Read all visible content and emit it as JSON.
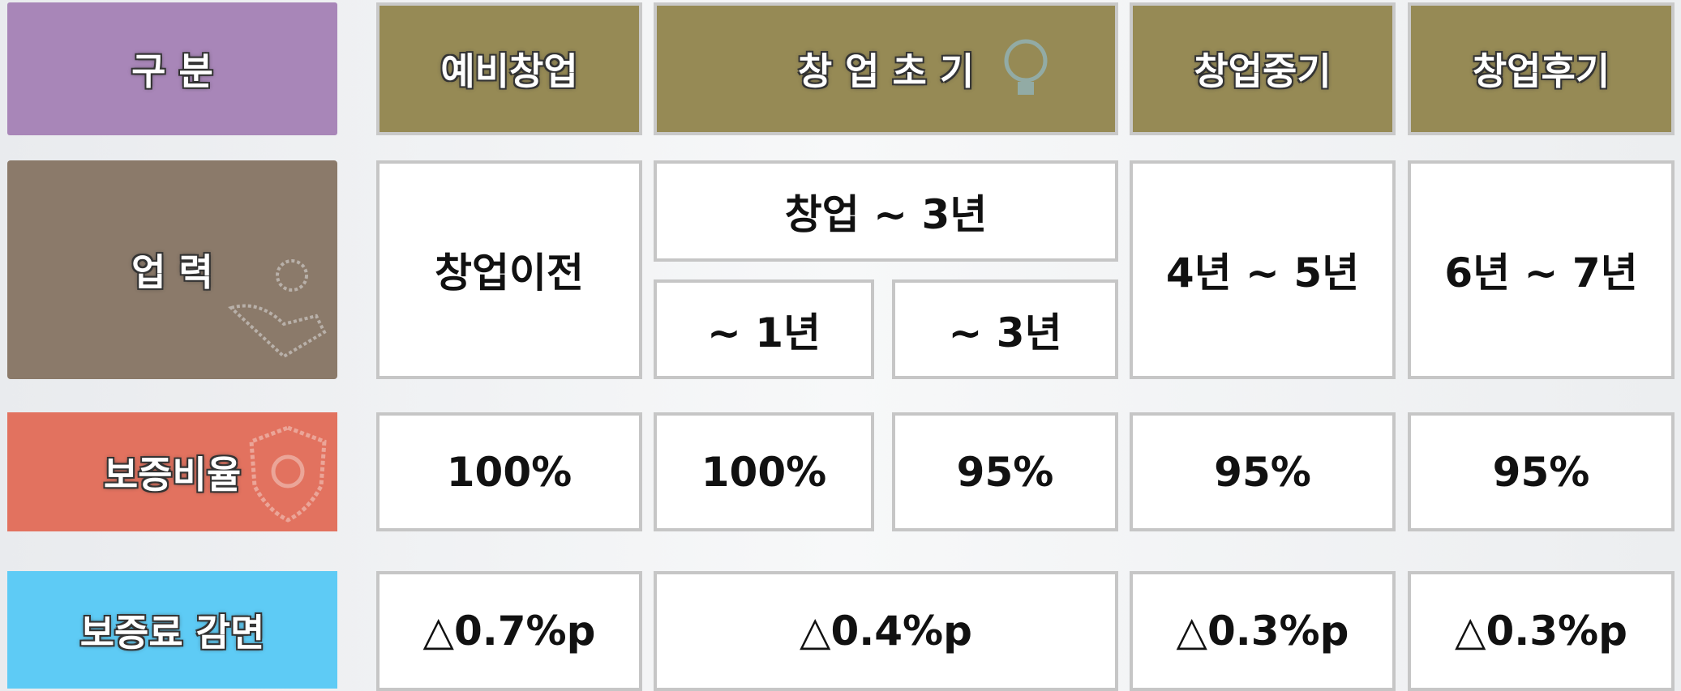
{
  "header": {
    "label": "구 분",
    "columns": [
      "예비창업",
      "창 업 초 기",
      "창업중기",
      "창업후기"
    ]
  },
  "rows": [
    {
      "label": "업 력",
      "cells": [
        "창업이전",
        "창업 ~ 3년",
        "~ 1년",
        "~ 3년",
        "4년 ~ 5년",
        "6년 ~ 7년"
      ]
    },
    {
      "label": "보증비율",
      "cells": [
        "100%",
        "100%",
        "95%",
        "95%",
        "95%"
      ]
    },
    {
      "label": "보증료 감면",
      "cells": [
        "△0.7%p",
        "△0.4%p",
        "△0.3%p",
        "△0.3%p"
      ]
    }
  ]
}
